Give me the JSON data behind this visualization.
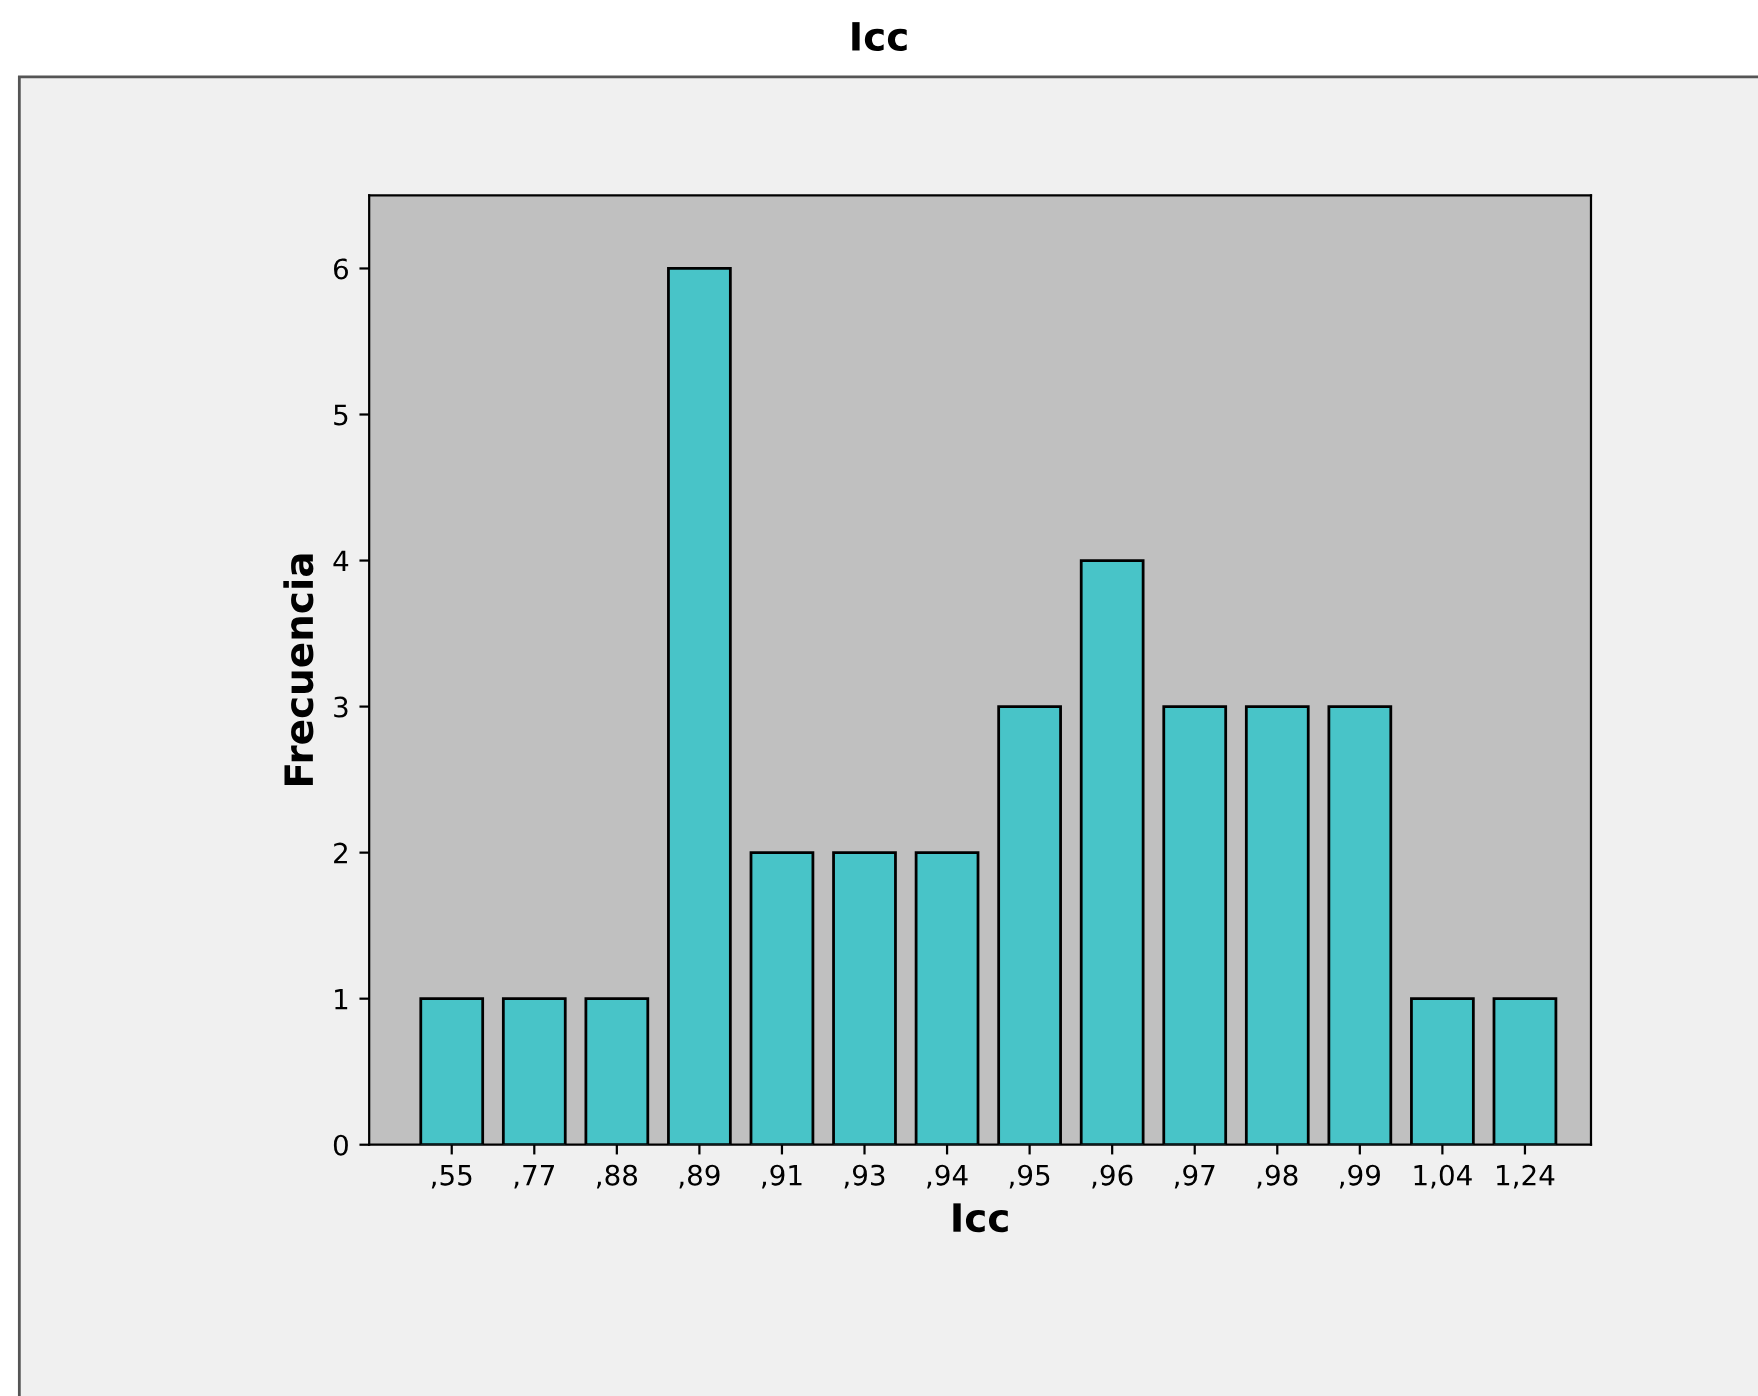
{
  "chart_data": {
    "type": "bar",
    "title": "Icc",
    "xlabel": "Icc",
    "ylabel": "Frecuencia",
    "categories": [
      ",55",
      ",77",
      ",88",
      ",89",
      ",91",
      ",93",
      ",94",
      ",95",
      ",96",
      ",97",
      ",98",
      ",99",
      "1,04",
      "1,24"
    ],
    "values": [
      1,
      1,
      1,
      6,
      2,
      2,
      2,
      3,
      4,
      3,
      3,
      3,
      1,
      1
    ],
    "color": "#48c4c8",
    "ylim": [
      0,
      6.5
    ],
    "yticks": [
      0,
      1,
      2,
      3,
      4,
      5,
      6
    ],
    "grid": false
  }
}
